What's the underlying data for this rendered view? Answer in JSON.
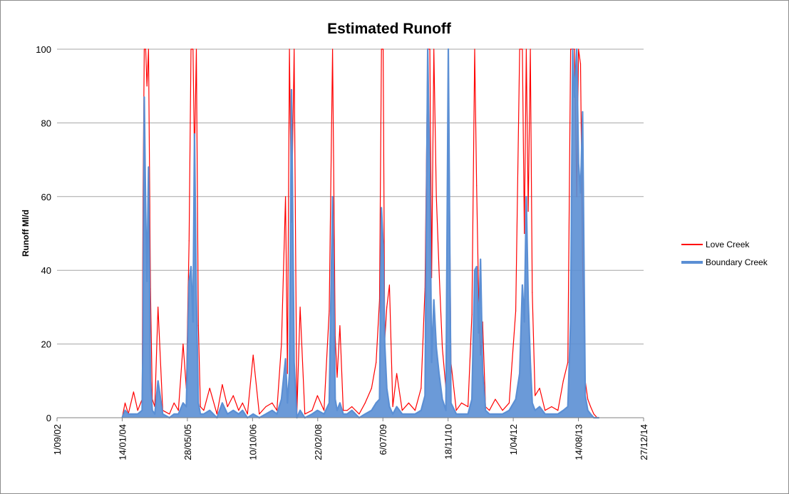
{
  "chart_data": {
    "type": "line",
    "title": "Estimated Runoff",
    "xlabel": "",
    "ylabel": "Runoff Ml/d",
    "ylim": [
      0,
      100
    ],
    "xlim": [
      "2002-09-01",
      "2014-12-27"
    ],
    "y_ticks": [
      0,
      20,
      40,
      60,
      80,
      100
    ],
    "x_ticks": [
      {
        "label": "1/09/02",
        "date": "2002-09-01"
      },
      {
        "label": "14/01/04",
        "date": "2004-01-14"
      },
      {
        "label": "28/05/05",
        "date": "2005-05-28"
      },
      {
        "label": "10/10/06",
        "date": "2006-10-10"
      },
      {
        "label": "22/02/08",
        "date": "2008-02-22"
      },
      {
        "label": "6/07/09",
        "date": "2009-07-06"
      },
      {
        "label": "18/11/10",
        "date": "2010-11-18"
      },
      {
        "label": "1/04/12",
        "date": "2012-04-01"
      },
      {
        "label": "14/08/13",
        "date": "2013-08-14"
      },
      {
        "label": "27/12/14",
        "date": "2014-12-27"
      }
    ],
    "grid": true,
    "legend_position": "right",
    "series": [
      {
        "name": "Love Creek",
        "color": "#ff0000",
        "x": [
          "2004-01-14",
          "2004-02-05",
          "2004-03-01",
          "2004-04-10",
          "2004-05-12",
          "2004-06-15",
          "2004-06-22",
          "2004-07-01",
          "2004-07-12",
          "2004-07-22",
          "2004-08-03",
          "2004-08-18",
          "2004-09-01",
          "2004-09-20",
          "2004-10-15",
          "2004-11-20",
          "2005-01-10",
          "2005-02-15",
          "2005-03-20",
          "2005-04-25",
          "2005-05-20",
          "2005-06-10",
          "2005-06-25",
          "2005-07-10",
          "2005-07-22",
          "2005-08-05",
          "2005-08-20",
          "2005-09-05",
          "2005-10-01",
          "2005-11-15",
          "2006-01-10",
          "2006-02-20",
          "2006-04-01",
          "2006-05-15",
          "2006-06-25",
          "2006-07-25",
          "2006-09-01",
          "2006-10-15",
          "2006-12-01",
          "2007-01-20",
          "2007-03-10",
          "2007-04-15",
          "2007-05-20",
          "2007-06-20",
          "2007-07-05",
          "2007-07-20",
          "2007-08-05",
          "2007-08-25",
          "2007-09-15",
          "2007-10-10",
          "2007-11-15",
          "2008-01-10",
          "2008-02-20",
          "2008-04-10",
          "2008-05-20",
          "2008-06-15",
          "2008-07-05",
          "2008-07-20",
          "2008-08-10",
          "2008-09-05",
          "2008-10-05",
          "2008-11-10",
          "2009-01-05",
          "2009-02-20",
          "2009-04-10",
          "2009-05-15",
          "2009-06-10",
          "2009-06-25",
          "2009-07-08",
          "2009-07-20",
          "2009-08-05",
          "2009-08-25",
          "2009-09-20",
          "2009-10-20",
          "2009-12-01",
          "2010-01-20",
          "2010-03-10",
          "2010-04-25",
          "2010-05-25",
          "2010-06-15",
          "2010-07-01",
          "2010-07-15",
          "2010-08-01",
          "2010-08-20",
          "2010-09-10",
          "2010-10-05",
          "2010-11-01",
          "2010-11-20",
          "2010-12-10",
          "2011-01-20",
          "2011-03-01",
          "2011-04-20",
          "2011-05-20",
          "2011-06-10",
          "2011-06-25",
          "2011-07-10",
          "2011-07-25",
          "2011-08-10",
          "2011-09-01",
          "2011-10-01",
          "2011-11-15",
          "2012-01-10",
          "2012-03-01",
          "2012-04-20",
          "2012-05-20",
          "2012-06-10",
          "2012-06-25",
          "2012-07-10",
          "2012-07-25",
          "2012-08-10",
          "2012-08-25",
          "2012-09-15",
          "2012-10-20",
          "2012-12-01",
          "2013-01-20",
          "2013-03-10",
          "2013-04-20",
          "2013-05-25",
          "2013-06-15",
          "2013-07-01",
          "2013-07-15",
          "2013-08-01",
          "2013-08-15",
          "2013-08-30",
          "2013-09-15",
          "2013-10-05",
          "2013-10-25",
          "2013-11-15",
          "2013-12-10",
          "2014-01-05",
          "2014-01-20"
        ],
        "y": [
          0,
          4,
          1,
          7,
          2,
          5,
          60,
          100,
          100,
          90,
          100,
          35,
          5,
          3,
          30,
          2,
          1,
          4,
          2,
          20,
          8,
          48,
          100,
          100,
          70,
          100,
          25,
          3,
          2,
          8,
          1,
          9,
          3,
          6,
          2,
          4,
          1,
          17,
          1,
          3,
          4,
          2,
          20,
          60,
          12,
          100,
          53,
          100,
          1,
          30,
          1,
          2,
          6,
          2,
          29,
          100,
          22,
          11,
          25,
          2,
          2,
          3,
          1,
          4,
          8,
          15,
          32,
          100,
          100,
          21,
          30,
          36,
          3,
          12,
          2,
          4,
          2,
          8,
          35,
          100,
          100,
          38,
          100,
          60,
          40,
          19,
          8,
          100,
          15,
          2,
          4,
          3,
          28,
          100,
          63,
          33,
          17,
          26,
          3,
          2,
          5,
          2,
          4,
          29,
          100,
          100,
          50,
          100,
          56,
          100,
          34,
          6,
          8,
          2,
          3,
          2,
          10,
          15,
          100,
          100,
          100,
          60,
          100,
          96,
          42,
          10,
          5,
          3,
          1,
          0,
          0
        ]
      },
      {
        "name": "Boundary Creek",
        "color": "#5b8fd4",
        "x": [
          "2004-01-14",
          "2004-02-05",
          "2004-03-01",
          "2004-04-10",
          "2004-05-12",
          "2004-06-15",
          "2004-06-22",
          "2004-07-01",
          "2004-07-12",
          "2004-07-22",
          "2004-08-03",
          "2004-08-18",
          "2004-09-01",
          "2004-09-20",
          "2004-10-15",
          "2004-11-20",
          "2005-01-10",
          "2005-02-15",
          "2005-03-20",
          "2005-04-25",
          "2005-05-20",
          "2005-06-10",
          "2005-06-25",
          "2005-07-10",
          "2005-07-22",
          "2005-08-05",
          "2005-08-20",
          "2005-09-05",
          "2005-10-01",
          "2005-11-15",
          "2006-01-10",
          "2006-02-20",
          "2006-04-01",
          "2006-05-15",
          "2006-06-25",
          "2006-07-25",
          "2006-09-01",
          "2006-10-15",
          "2006-12-01",
          "2007-01-20",
          "2007-03-10",
          "2007-04-15",
          "2007-05-20",
          "2007-06-20",
          "2007-07-05",
          "2007-07-20",
          "2007-08-05",
          "2007-08-25",
          "2007-09-15",
          "2007-10-10",
          "2007-11-15",
          "2008-01-10",
          "2008-02-20",
          "2008-04-10",
          "2008-05-20",
          "2008-06-15",
          "2008-07-05",
          "2008-07-20",
          "2008-08-10",
          "2008-09-05",
          "2008-10-05",
          "2008-11-10",
          "2009-01-05",
          "2009-02-20",
          "2009-04-10",
          "2009-05-15",
          "2009-06-10",
          "2009-06-25",
          "2009-07-08",
          "2009-07-20",
          "2009-08-05",
          "2009-08-25",
          "2009-09-20",
          "2009-10-20",
          "2009-12-01",
          "2010-01-20",
          "2010-03-10",
          "2010-04-25",
          "2010-05-25",
          "2010-06-15",
          "2010-07-01",
          "2010-07-15",
          "2010-08-01",
          "2010-08-20",
          "2010-09-10",
          "2010-10-05",
          "2010-11-01",
          "2010-11-20",
          "2010-12-10",
          "2011-01-20",
          "2011-03-01",
          "2011-04-20",
          "2011-05-20",
          "2011-06-10",
          "2011-06-25",
          "2011-07-10",
          "2011-07-25",
          "2011-08-10",
          "2011-09-01",
          "2011-10-01",
          "2011-11-15",
          "2012-01-10",
          "2012-03-01",
          "2012-04-20",
          "2012-05-20",
          "2012-06-10",
          "2012-06-25",
          "2012-07-10",
          "2012-07-25",
          "2012-08-10",
          "2012-08-25",
          "2012-09-15",
          "2012-10-20",
          "2012-12-01",
          "2013-01-20",
          "2013-03-10",
          "2013-04-20",
          "2013-05-25",
          "2013-06-15",
          "2013-07-01",
          "2013-07-15",
          "2013-08-01",
          "2013-08-15",
          "2013-08-30",
          "2013-09-15",
          "2013-10-05",
          "2013-10-25",
          "2013-11-15",
          "2013-12-10",
          "2014-01-05",
          "2014-01-20"
        ],
        "y": [
          0,
          2,
          1,
          1,
          1,
          2,
          23,
          87,
          56,
          37,
          68,
          10,
          2,
          1,
          10,
          1,
          0,
          1,
          1,
          4,
          3,
          37,
          41,
          26,
          77,
          33,
          4,
          1,
          1,
          2,
          0,
          4,
          1,
          2,
          1,
          2,
          0,
          1,
          0,
          1,
          2,
          1,
          5,
          16,
          4,
          12,
          89,
          15,
          0,
          2,
          0,
          1,
          2,
          1,
          4,
          60,
          5,
          2,
          4,
          1,
          1,
          2,
          0,
          1,
          2,
          4,
          5,
          57,
          47,
          20,
          8,
          3,
          1,
          3,
          1,
          1,
          1,
          2,
          6,
          100,
          63,
          15,
          32,
          19,
          12,
          5,
          2,
          100,
          4,
          1,
          1,
          1,
          5,
          40,
          41,
          23,
          43,
          13,
          2,
          1,
          1,
          1,
          2,
          5,
          12,
          36,
          26,
          60,
          32,
          15,
          4,
          2,
          3,
          1,
          1,
          1,
          2,
          3,
          26,
          100,
          87,
          100,
          69,
          61,
          83,
          6,
          2,
          1,
          0,
          0,
          0
        ]
      }
    ]
  }
}
